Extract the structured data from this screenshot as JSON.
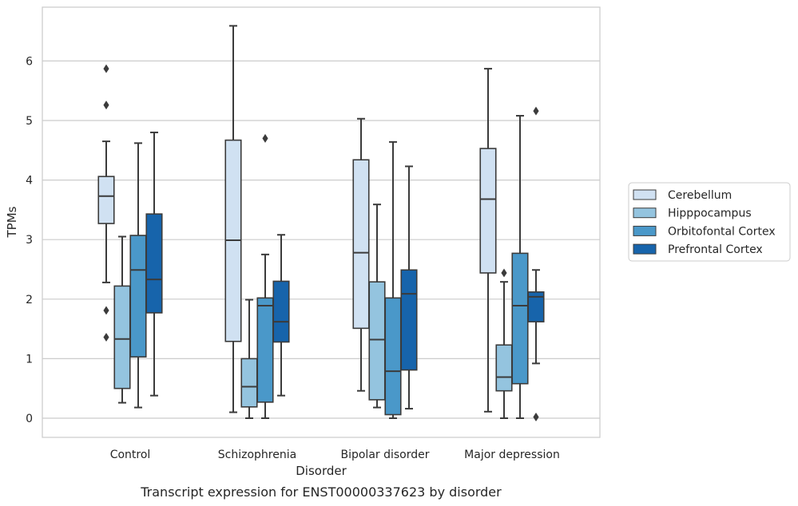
{
  "chart_data": {
    "type": "box",
    "xlabel": "Disorder",
    "ylabel": "TPMs",
    "caption": "Transcript expression for ENST00000337623 by disorder",
    "ylim": [
      -0.32,
      6.9
    ],
    "yticks": [
      0,
      1,
      2,
      3,
      4,
      5,
      6
    ],
    "grid": "horizontal",
    "legend_position": "right",
    "categories": [
      "Control",
      "Schizophrenia",
      "Bipolar disorder",
      "Major depression"
    ],
    "series": [
      {
        "name": "Cerebellum",
        "color": "#d0e1f2",
        "boxes": [
          {
            "whislo": 2.28,
            "q1": 3.27,
            "med": 3.73,
            "q3": 4.06,
            "whishi": 4.65,
            "fliers": [
              5.87,
              5.26,
              1.81,
              1.36
            ]
          },
          {
            "whislo": 0.1,
            "q1": 1.29,
            "med": 2.99,
            "q3": 4.67,
            "whishi": 6.59,
            "fliers": []
          },
          {
            "whislo": 0.46,
            "q1": 1.51,
            "med": 2.78,
            "q3": 4.34,
            "whishi": 5.03,
            "fliers": []
          },
          {
            "whislo": 0.11,
            "q1": 2.44,
            "med": 3.68,
            "q3": 4.53,
            "whishi": 5.87,
            "fliers": []
          }
        ]
      },
      {
        "name": "Hipppocampus",
        "color": "#94c4df",
        "boxes": [
          {
            "whislo": 0.26,
            "q1": 0.5,
            "med": 1.33,
            "q3": 2.22,
            "whishi": 3.05,
            "fliers": []
          },
          {
            "whislo": 0.0,
            "q1": 0.19,
            "med": 0.53,
            "q3": 1.0,
            "whishi": 1.99,
            "fliers": []
          },
          {
            "whislo": 0.18,
            "q1": 0.31,
            "med": 1.32,
            "q3": 2.29,
            "whishi": 3.59,
            "fliers": []
          },
          {
            "whislo": 0.0,
            "q1": 0.46,
            "med": 0.69,
            "q3": 1.23,
            "whishi": 2.29,
            "fliers": [
              2.44
            ]
          }
        ]
      },
      {
        "name": "Orbitofontal Cortex",
        "color": "#4a98c9",
        "boxes": [
          {
            "whislo": 0.18,
            "q1": 1.03,
            "med": 2.49,
            "q3": 3.07,
            "whishi": 4.62,
            "fliers": []
          },
          {
            "whislo": 0.0,
            "q1": 0.27,
            "med": 1.89,
            "q3": 2.02,
            "whishi": 2.75,
            "fliers": [
              4.7
            ]
          },
          {
            "whislo": 0.0,
            "q1": 0.06,
            "med": 0.79,
            "q3": 2.02,
            "whishi": 4.64,
            "fliers": []
          },
          {
            "whislo": 0.0,
            "q1": 0.58,
            "med": 1.89,
            "q3": 2.77,
            "whishi": 5.08,
            "fliers": []
          }
        ]
      },
      {
        "name": "Prefrontal Cortex",
        "color": "#1764ab",
        "boxes": [
          {
            "whislo": 0.38,
            "q1": 1.77,
            "med": 2.33,
            "q3": 3.43,
            "whishi": 4.8,
            "fliers": []
          },
          {
            "whislo": 0.38,
            "q1": 1.28,
            "med": 1.62,
            "q3": 2.3,
            "whishi": 3.08,
            "fliers": []
          },
          {
            "whislo": 0.16,
            "q1": 0.81,
            "med": 2.09,
            "q3": 2.49,
            "whishi": 4.23,
            "fliers": []
          },
          {
            "whislo": 0.92,
            "q1": 1.62,
            "med": 2.04,
            "q3": 2.12,
            "whishi": 2.49,
            "fliers": [
              5.16,
              0.02
            ]
          }
        ]
      }
    ]
  }
}
